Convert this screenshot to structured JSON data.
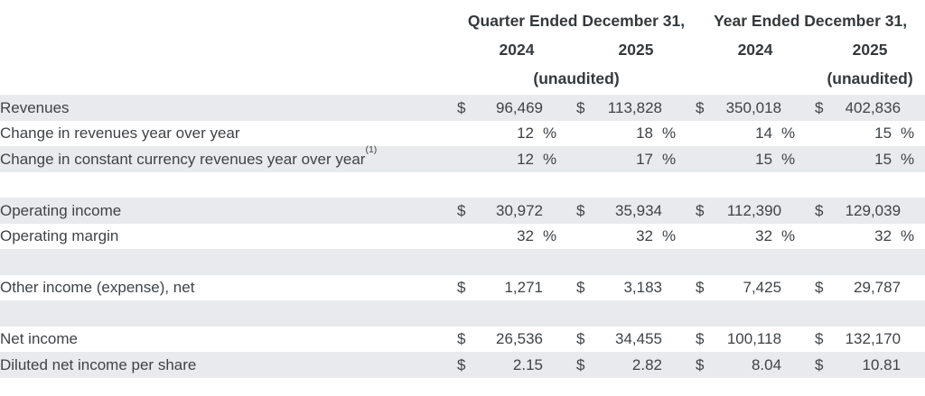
{
  "table": {
    "header": {
      "quarter_group_title": "Quarter Ended December 31,",
      "year_group_title": "Year Ended December 31,",
      "quarter_col_years": [
        "2024",
        "2025"
      ],
      "year_col_years": [
        "2024",
        "2025"
      ],
      "quarter_unaudited_note": "(unaudited)",
      "year_unaudited_note": "(unaudited)"
    },
    "symbols": {
      "dollar": "$",
      "percent": "%"
    },
    "rows": [
      {
        "type": "currency",
        "label": "Revenues",
        "sup": "",
        "values": [
          "96,469",
          "113,828",
          "350,018",
          "402,836"
        ],
        "shaded": true
      },
      {
        "type": "percent",
        "label": "Change in revenues year over year",
        "sup": "",
        "values": [
          "12",
          "18",
          "14",
          "15"
        ],
        "shaded": false
      },
      {
        "type": "percent",
        "label": "Change in constant currency revenues year over year",
        "sup": "(1)",
        "values": [
          "12",
          "17",
          "15",
          "15"
        ],
        "shaded": true
      },
      {
        "type": "blank",
        "label": "",
        "sup": "",
        "values": [
          "",
          "",
          "",
          ""
        ],
        "shaded": false
      },
      {
        "type": "currency",
        "label": "Operating income",
        "sup": "",
        "values": [
          "30,972",
          "35,934",
          "112,390",
          "129,039"
        ],
        "shaded": true
      },
      {
        "type": "percent",
        "label": "Operating margin",
        "sup": "",
        "values": [
          "32",
          "32",
          "32",
          "32"
        ],
        "shaded": false
      },
      {
        "type": "blank",
        "label": "",
        "sup": "",
        "values": [
          "",
          "",
          "",
          ""
        ],
        "shaded": true
      },
      {
        "type": "currency",
        "label": "Other income (expense), net",
        "sup": "",
        "values": [
          "1,271",
          "3,183",
          "7,425",
          "29,787"
        ],
        "shaded": false
      },
      {
        "type": "blank",
        "label": "",
        "sup": "",
        "values": [
          "",
          "",
          "",
          ""
        ],
        "shaded": true
      },
      {
        "type": "currency",
        "label": "Net income",
        "sup": "",
        "values": [
          "26,536",
          "34,455",
          "100,118",
          "132,170"
        ],
        "shaded": false
      },
      {
        "type": "currency",
        "label": "Diluted net income per share",
        "sup": "",
        "values": [
          "2.15",
          "2.82",
          "8.04",
          "10.81"
        ],
        "shaded": true
      }
    ]
  },
  "colors": {
    "row_shade": "#e8eaed",
    "body_text": "#3f4347",
    "header_text": "#35393c",
    "background": "#ffffff"
  }
}
